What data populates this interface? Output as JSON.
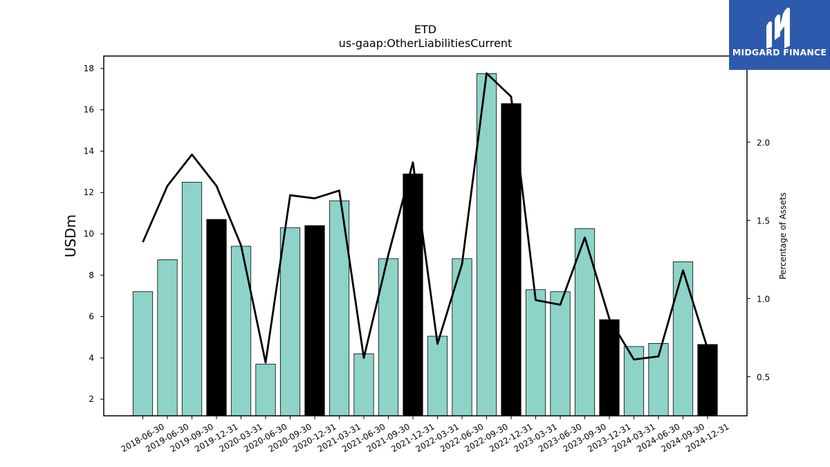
{
  "logo": {
    "text": "MIDGARD FINANCE",
    "bg_color": "#2d5aad"
  },
  "chart_data": {
    "type": "bar",
    "title": "ETD",
    "subtitle": "us-gaap:OtherLiabilitiesCurrent",
    "ylabel": "USDm",
    "y2label": "Percentage of Assets",
    "ylim": [
      1.2,
      18.6
    ],
    "y2lim": [
      0.25,
      2.55
    ],
    "yticks": [
      2,
      4,
      6,
      8,
      10,
      12,
      14,
      16,
      18
    ],
    "y2ticks": [
      0.5,
      1.0,
      1.5,
      2.0
    ],
    "y2tick_labels": [
      "0.5",
      "1.0",
      "1.5",
      "2.0"
    ],
    "grid": false,
    "colors": {
      "quarter": "#8dd3c7",
      "year_end": "#000000",
      "line": "#000000"
    },
    "categories": [
      "2018-06-30",
      "2019-06-30",
      "2019-09-30",
      "2019-12-31",
      "2020-03-31",
      "2020-06-30",
      "2020-09-30",
      "2020-12-31",
      "2021-03-31",
      "2021-06-30",
      "2021-09-30",
      "2021-12-31",
      "2022-03-31",
      "2022-06-30",
      "2022-09-30",
      "2022-12-31",
      "2023-03-31",
      "2023-06-30",
      "2023-09-30",
      "2023-12-31",
      "2024-03-31",
      "2024-06-30",
      "2024-09-30",
      "2024-12-31"
    ],
    "series": [
      {
        "type": "bar",
        "values": [
          7.2,
          8.75,
          12.5,
          10.7,
          9.4,
          3.7,
          10.3,
          10.4,
          11.6,
          4.2,
          8.8,
          12.9,
          5.05,
          8.8,
          17.75,
          16.3,
          7.3,
          7.2,
          10.25,
          5.85,
          4.55,
          4.7,
          8.65,
          4.65
        ],
        "highlight": [
          false,
          false,
          false,
          true,
          false,
          false,
          false,
          true,
          false,
          false,
          false,
          true,
          false,
          false,
          false,
          true,
          false,
          false,
          false,
          true,
          false,
          false,
          false,
          true
        ]
      },
      {
        "type": "line",
        "axis": "right",
        "values": [
          1.36,
          1.72,
          1.92,
          1.72,
          1.34,
          0.59,
          1.66,
          1.64,
          1.69,
          0.62,
          1.28,
          1.87,
          0.71,
          1.22,
          2.44,
          2.29,
          0.99,
          0.96,
          1.39,
          0.87,
          0.61,
          0.63,
          1.18,
          0.68
        ]
      }
    ]
  }
}
